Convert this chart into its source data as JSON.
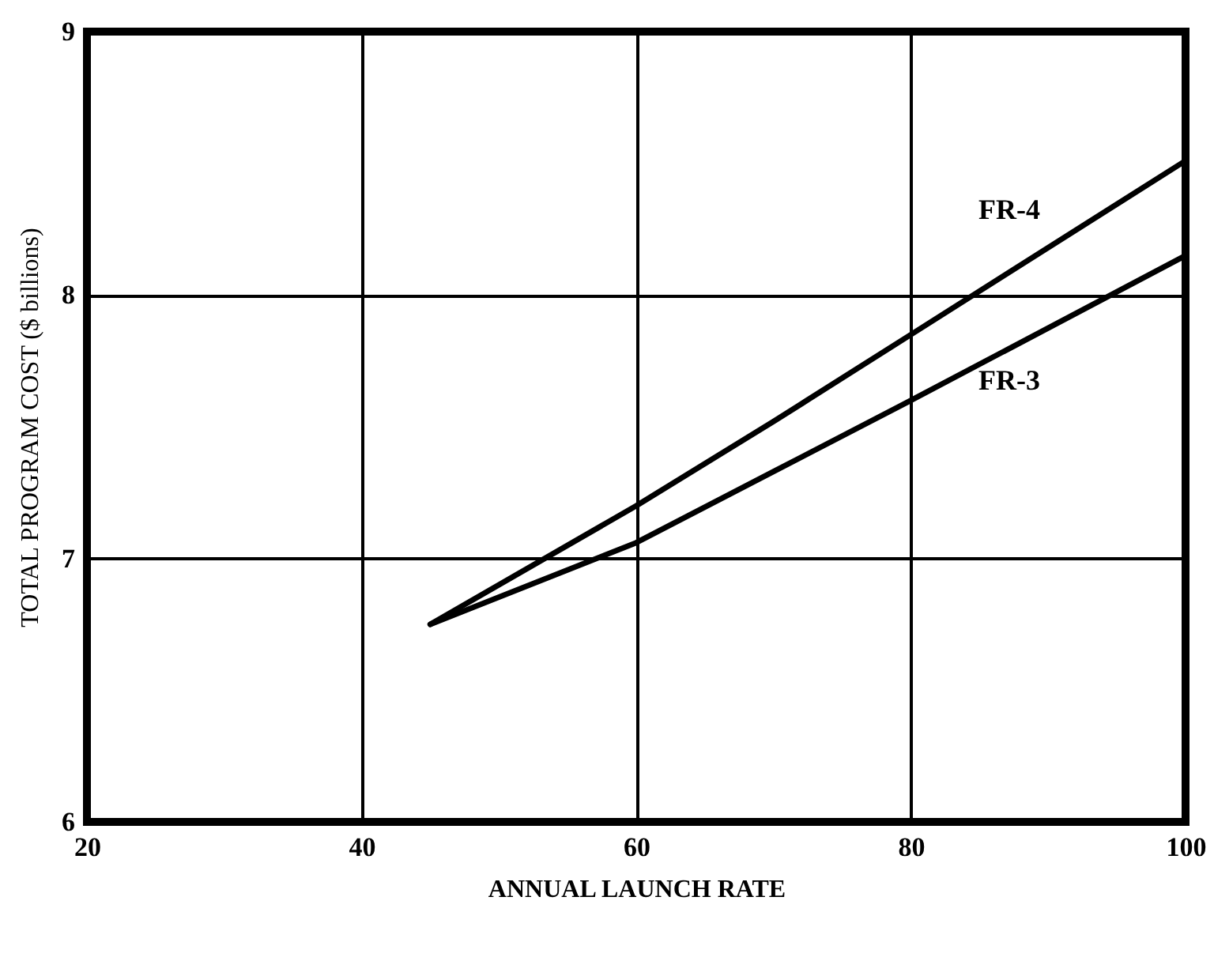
{
  "chart_data": {
    "type": "line",
    "xlabel": "ANNUAL LAUNCH RATE",
    "ylabel": "TOTAL PROGRAM COST  ($ billions)",
    "series": [
      {
        "name": "FR-4",
        "color": "#000000",
        "x": [
          45,
          60,
          70,
          80,
          100
        ],
        "values": [
          6.75,
          7.2,
          7.52,
          7.85,
          8.51
        ]
      },
      {
        "name": "FR-3",
        "color": "#000000",
        "x": [
          45,
          60,
          70,
          80,
          100
        ],
        "values": [
          6.75,
          7.06,
          7.33,
          7.6,
          8.15
        ]
      }
    ],
    "xlim": [
      20,
      100
    ],
    "xticks": [
      20,
      40,
      60,
      80,
      100
    ],
    "ylim": [
      6,
      9
    ],
    "yticks": [
      6,
      7,
      8,
      9
    ],
    "grid": true,
    "marker": "none",
    "line_style": "solid"
  }
}
